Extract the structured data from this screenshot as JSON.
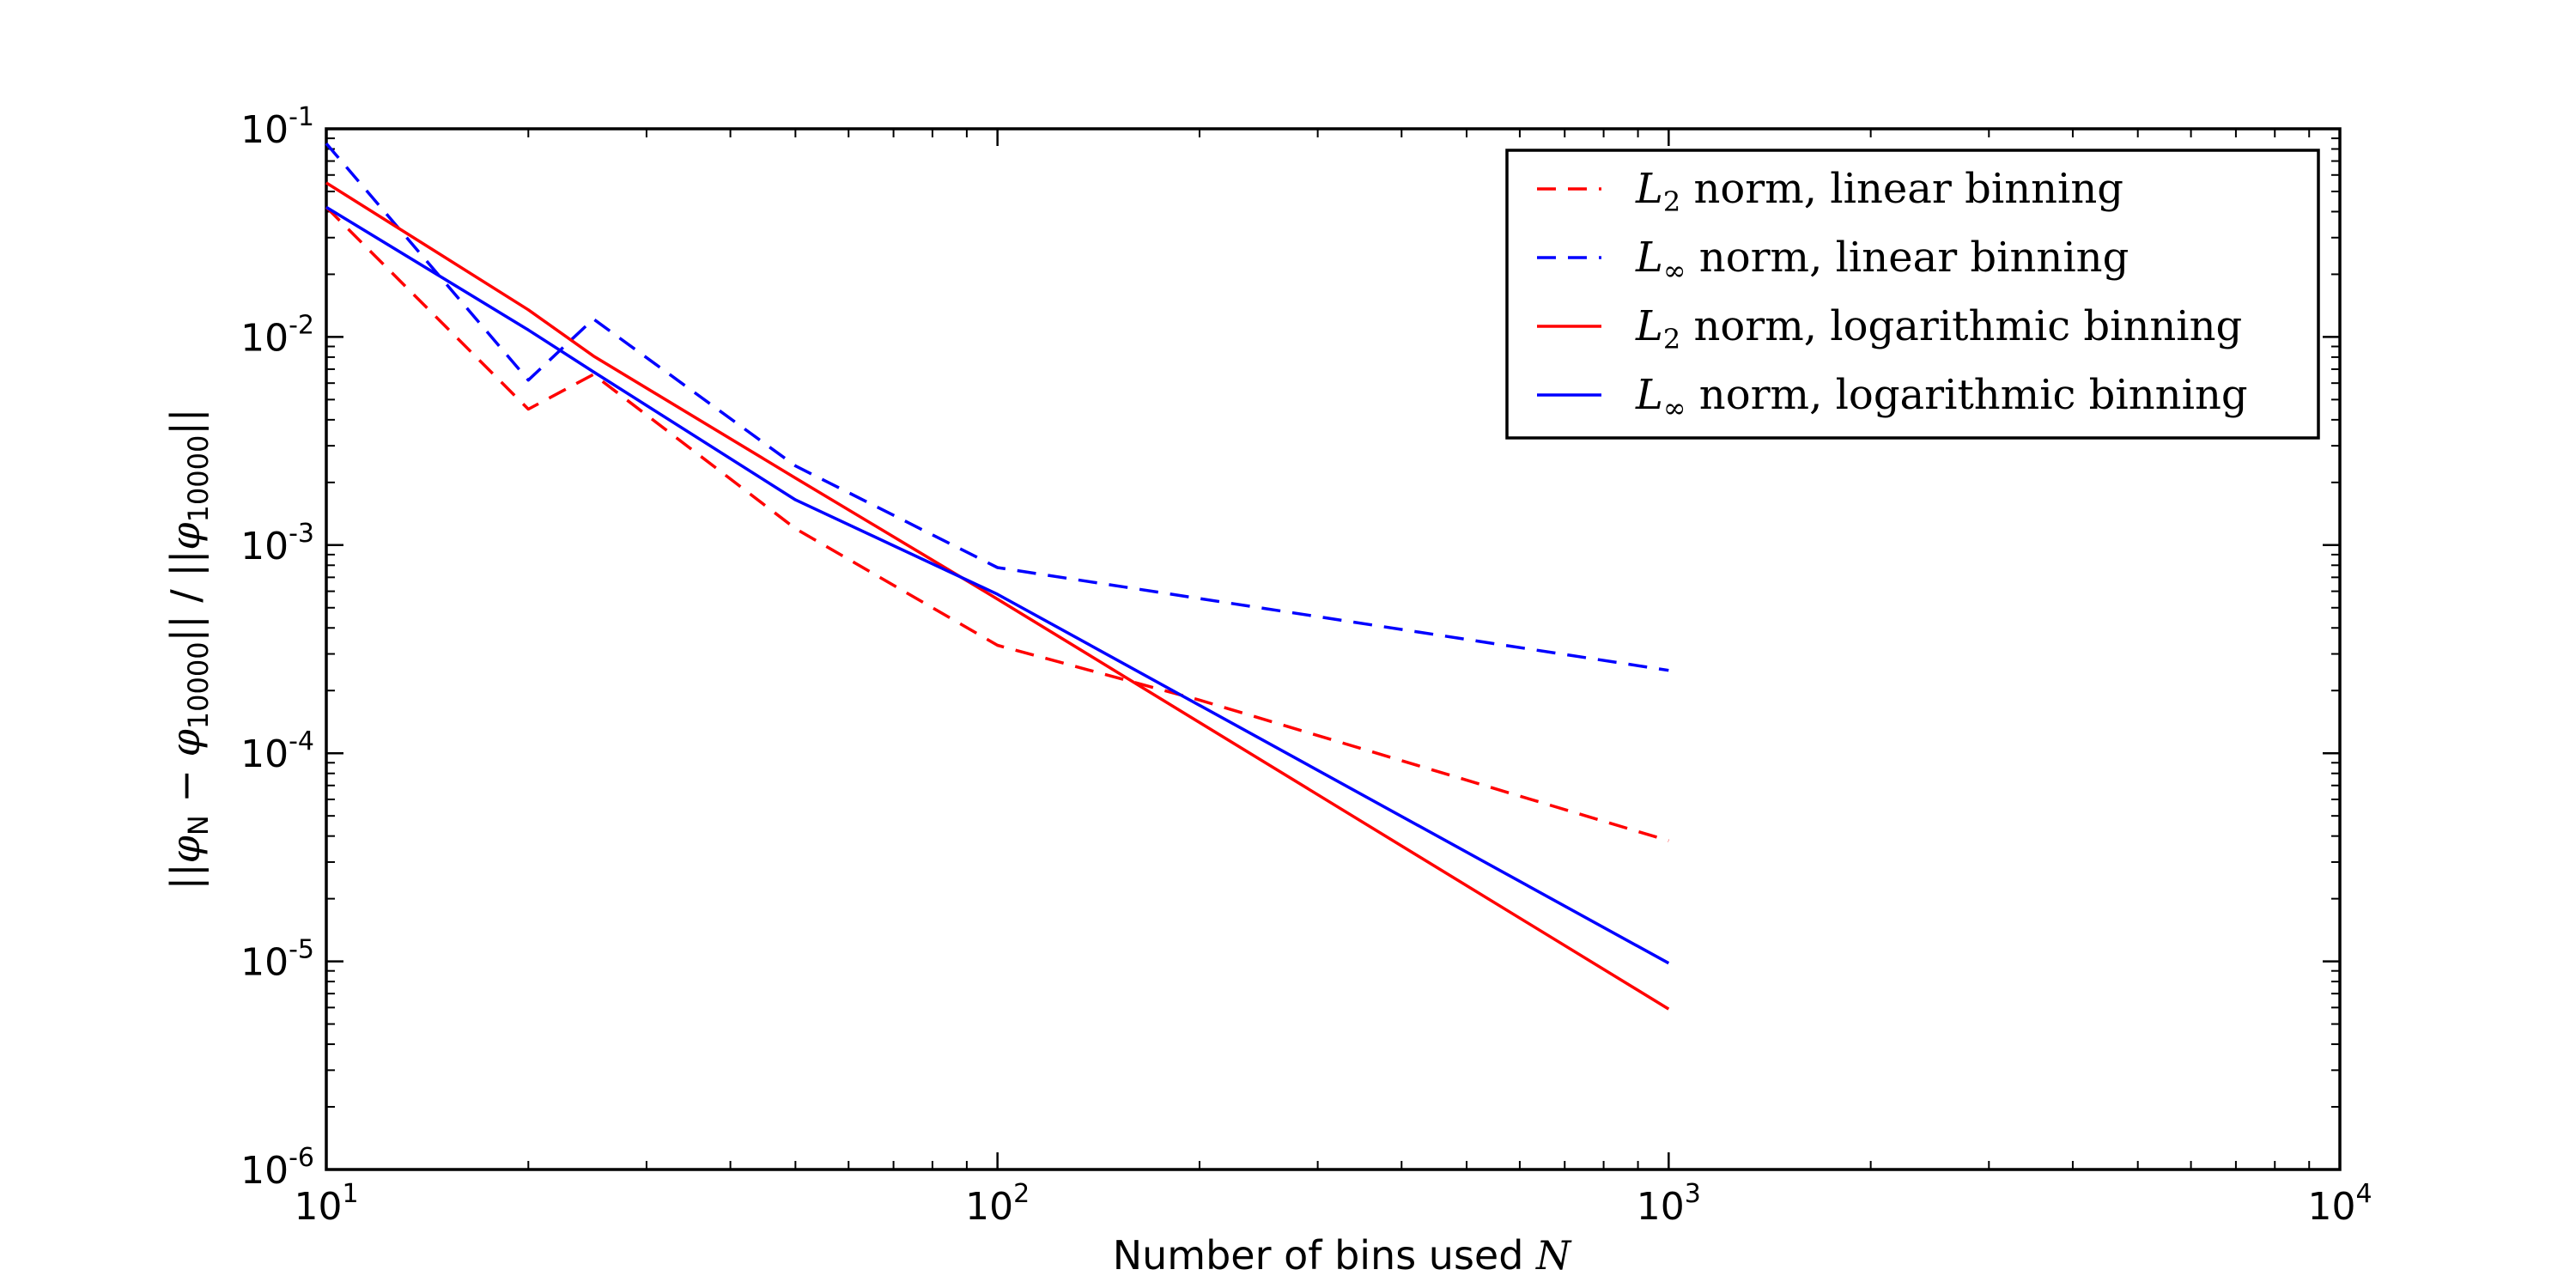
{
  "chart_data": {
    "type": "line",
    "xscale": "log",
    "yscale": "log",
    "xlim": [
      10,
      10000
    ],
    "ylim": [
      1e-06,
      0.1
    ],
    "grid": false,
    "legend_placement": "top-right",
    "xlabel": {
      "text": "Number of bins used ",
      "var": "N"
    },
    "ylabel": {
      "text": "||φN − φ10000|| / ||φ10000||",
      "parts": [
        "||",
        "φ",
        "N",
        " − ",
        "φ",
        "10000",
        "|| / ||",
        "φ",
        "10000",
        "||"
      ]
    },
    "x_ticks": [
      {
        "value": 10,
        "base": "10",
        "exp": "1"
      },
      {
        "value": 100,
        "base": "10",
        "exp": "2"
      },
      {
        "value": 1000,
        "base": "10",
        "exp": "3"
      },
      {
        "value": 10000,
        "base": "10",
        "exp": "4"
      }
    ],
    "y_ticks": [
      {
        "value": 0.1,
        "base": "10",
        "exp": "-1"
      },
      {
        "value": 0.01,
        "base": "10",
        "exp": "-2"
      },
      {
        "value": 0.001,
        "base": "10",
        "exp": "-3"
      },
      {
        "value": 0.0001,
        "base": "10",
        "exp": "-4"
      },
      {
        "value": 1e-05,
        "base": "10",
        "exp": "-5"
      },
      {
        "value": 1e-06,
        "base": "10",
        "exp": "-6"
      }
    ],
    "series": [
      {
        "name": "L2 norm, linear binning",
        "label_var": "L",
        "label_sub": "2",
        "label_rest": " norm, linear binning",
        "color": "#ff0000",
        "dash": "dashed",
        "x": [
          10,
          20,
          25,
          50,
          100,
          200,
          1000
        ],
        "y": [
          0.042,
          0.0045,
          0.0066,
          0.0012,
          0.00033,
          0.00018,
          3.8e-05
        ]
      },
      {
        "name": "L∞ norm, linear binning",
        "label_var": "L",
        "label_sub": "∞",
        "label_rest": " norm, linear binning",
        "color": "#0000ff",
        "dash": "dashed",
        "x": [
          10,
          20,
          25,
          50,
          100,
          1000
        ],
        "y": [
          0.085,
          0.0062,
          0.0122,
          0.0024,
          0.00078,
          0.00025
        ]
      },
      {
        "name": "L2 norm, logarithmic binning",
        "label_var": "L",
        "label_sub": "2",
        "label_rest": " norm, logarithmic binning",
        "color": "#ff0000",
        "dash": "solid",
        "x": [
          10,
          20,
          25,
          50,
          100,
          1000
        ],
        "y": [
          0.055,
          0.0135,
          0.0081,
          0.0021,
          0.00055,
          5.9e-06
        ]
      },
      {
        "name": "L∞ norm, logarithmic binning",
        "label_var": "L",
        "label_sub": "∞",
        "label_rest": " norm, logarithmic binning",
        "color": "#0000ff",
        "dash": "solid",
        "x": [
          10,
          20,
          25,
          50,
          100,
          1000
        ],
        "y": [
          0.042,
          0.0108,
          0.0068,
          0.00165,
          0.00058,
          9.8e-06
        ]
      }
    ]
  }
}
